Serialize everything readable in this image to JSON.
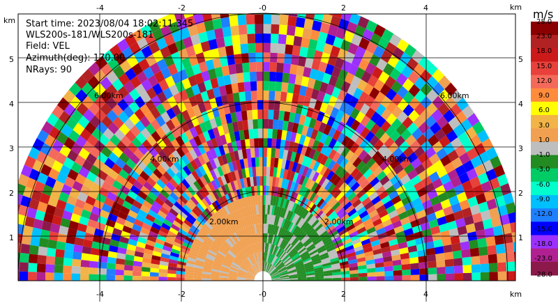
{
  "info": {
    "start_time": "Start time: 2023/08/04 18:02:11.345",
    "instrument": "WLS200s-181/WLS200s-181",
    "field": "Field: VEL",
    "azimuth": "Azimuth(deg): 170.00",
    "nrays": "NRays: 90"
  },
  "axes": {
    "x_unit": "km",
    "y_unit": "km",
    "x_ticks": [
      "-4",
      "-2",
      "-0",
      "2",
      "4"
    ],
    "y_ticks": [
      "1",
      "2",
      "3",
      "4",
      "5"
    ]
  },
  "range_rings": [
    "2.00km",
    "2.00km",
    "4.00km",
    "4.00km",
    "6.00km",
    "6.00km"
  ],
  "colorbar": {
    "unit": "m/s",
    "labels": [
      "28.0",
      "23.0",
      "18.0",
      "15.0",
      "12.0",
      "9.0",
      "6.0",
      "3.0",
      "1.0",
      "-1.0",
      "-3.0",
      "-6.0",
      "-9.0",
      "-12.0",
      "-15.0",
      "-18.0",
      "-23.0",
      "-28.0"
    ],
    "colors": [
      "#8b0000",
      "#b22222",
      "#cc1a1a",
      "#e8403a",
      "#f46a5a",
      "#ff8c3c",
      "#ffff00",
      "#f2b347",
      "#f0a050",
      "#bebebe",
      "#228b22",
      "#00cc66",
      "#00ffcc",
      "#00bfff",
      "#1e7fff",
      "#0000ff",
      "#9b30ff",
      "#b02090",
      "#8b1a4a"
    ]
  }
}
